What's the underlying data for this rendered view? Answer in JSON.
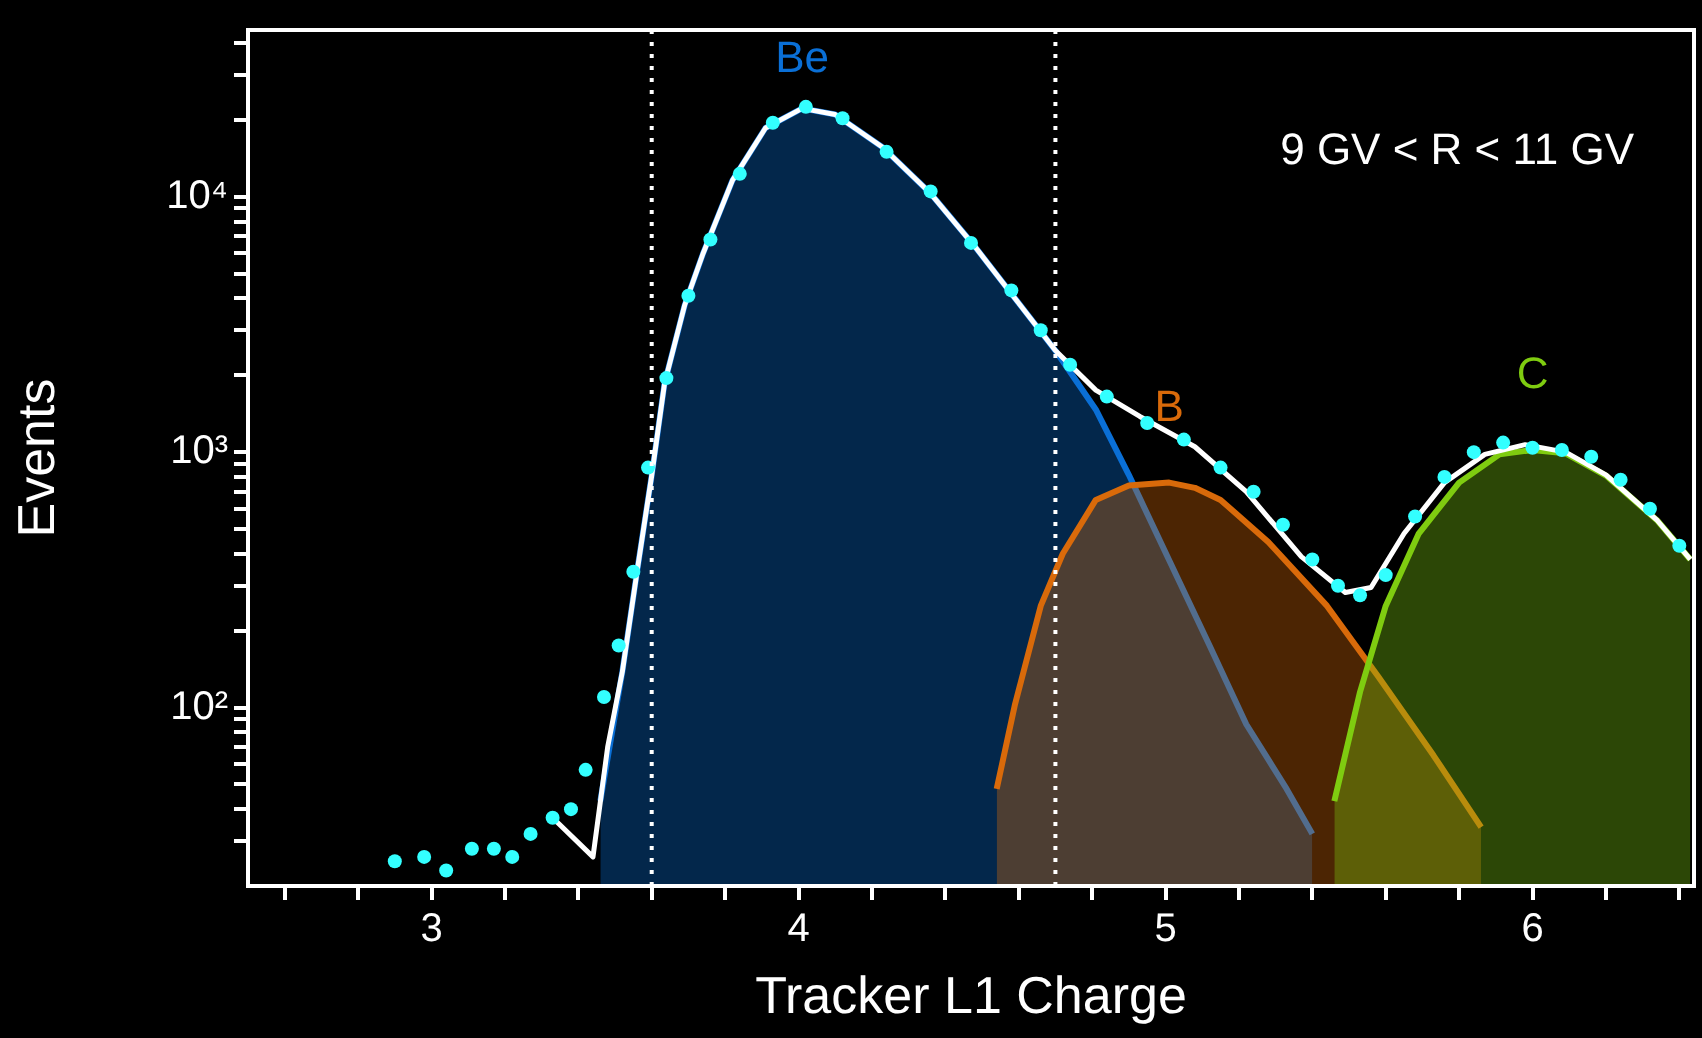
{
  "chart_data": {
    "type": "area",
    "xlabel": "Tracker L1 Charge",
    "ylabel": "Events",
    "annotations": [
      "9 GV < R < 11 GV"
    ],
    "log": "y",
    "grid": false,
    "legend": false,
    "xlim": [
      2.5,
      6.44
    ],
    "ylim": [
      20,
      45000
    ],
    "xticks": [
      {
        "value": 2.6,
        "label": null
      },
      {
        "value": 2.8,
        "label": null
      },
      3,
      {
        "value": 3.2,
        "label": null
      },
      {
        "value": 3.4,
        "label": null
      },
      {
        "value": 3.6,
        "label": null
      },
      {
        "value": 3.8,
        "label": null
      },
      4,
      {
        "value": 4.2,
        "label": null
      },
      {
        "value": 4.4,
        "label": null
      },
      {
        "value": 4.6,
        "label": null
      },
      {
        "value": 4.8,
        "label": null
      },
      5,
      {
        "value": 5.2,
        "label": null
      },
      {
        "value": 5.4,
        "label": null
      },
      {
        "value": 5.6,
        "label": null
      },
      {
        "value": 5.8,
        "label": null
      },
      6,
      {
        "value": 6.2,
        "label": null
      },
      {
        "value": 6.4,
        "label": null
      }
    ],
    "yticks": [
      {
        "value": 30,
        "label": null
      },
      {
        "value": 40,
        "label": null
      },
      {
        "value": 50,
        "label": null
      },
      {
        "value": 60,
        "label": null
      },
      {
        "value": 70,
        "label": null
      },
      {
        "value": 80,
        "label": null
      },
      {
        "value": 90,
        "label": null
      },
      {
        "value": 100,
        "label": "10²"
      },
      {
        "value": 200,
        "label": null
      },
      {
        "value": 300,
        "label": null
      },
      {
        "value": 400,
        "label": null
      },
      {
        "value": 500,
        "label": null
      },
      {
        "value": 600,
        "label": null
      },
      {
        "value": 700,
        "label": null
      },
      {
        "value": 800,
        "label": null
      },
      {
        "value": 900,
        "label": null
      },
      {
        "value": 1000,
        "label": "10³"
      },
      {
        "value": 2000,
        "label": null
      },
      {
        "value": 3000,
        "label": null
      },
      {
        "value": 4000,
        "label": null
      },
      {
        "value": 5000,
        "label": null
      },
      {
        "value": 6000,
        "label": null
      },
      {
        "value": 7000,
        "label": null
      },
      {
        "value": 8000,
        "label": null
      },
      {
        "value": 9000,
        "label": null
      },
      {
        "value": 10000,
        "label": "10⁴"
      },
      {
        "value": 20000,
        "label": null
      },
      {
        "value": 30000,
        "label": null
      },
      {
        "value": 40000,
        "label": null
      }
    ],
    "ref_lines": [
      {
        "axis": "x",
        "value": 3.6,
        "color": "#ffffff",
        "line_style": "dotted"
      },
      {
        "axis": "x",
        "value": 4.7,
        "color": "#ffffff",
        "line_style": "dotted"
      }
    ],
    "series": [
      {
        "name": "Be",
        "color": "#0a6fd6",
        "x": [
          3.46,
          3.52,
          3.56,
          3.6,
          3.635,
          3.69,
          3.74,
          3.82,
          3.91,
          4.01,
          4.1,
          4.23,
          4.36,
          4.48,
          4.59,
          4.7,
          4.81,
          4.9,
          5.01,
          5.12,
          5.22,
          5.33,
          5.4
        ],
        "values": [
          43,
          138,
          340,
          810,
          1860,
          3770,
          6000,
          11600,
          18600,
          22200,
          21000,
          15600,
          10300,
          6400,
          4000,
          2500,
          1470,
          815,
          377,
          175,
          86,
          48,
          32
        ]
      },
      {
        "name": "B",
        "color": "#d96a0a",
        "x": [
          4.54,
          4.59,
          4.66,
          4.72,
          4.81,
          4.9,
          5.01,
          5.08,
          5.15,
          5.28,
          5.44,
          5.58,
          5.73,
          5.86
        ],
        "values": [
          48,
          103,
          250,
          400,
          650,
          740,
          760,
          725,
          650,
          445,
          250,
          132,
          65,
          34
        ]
      },
      {
        "name": "C",
        "color": "#7fcc10",
        "x": [
          5.46,
          5.53,
          5.6,
          5.69,
          5.8,
          5.91,
          6.0,
          6.09,
          6.2,
          6.34,
          6.43
        ],
        "values": [
          43,
          115,
          250,
          480,
          760,
          980,
          1020,
          990,
          810,
          540,
          380
        ]
      },
      {
        "type": "line",
        "color": "#ffffff",
        "x": [
          3.33,
          3.44,
          3.48,
          3.52,
          3.56,
          3.6,
          3.635,
          3.69,
          3.74,
          3.82,
          3.91,
          4.01,
          4.1,
          4.23,
          4.36,
          4.48,
          4.59,
          4.7,
          4.81,
          4.93,
          5.08,
          5.22,
          5.37,
          5.49,
          5.56,
          5.65,
          5.76,
          5.87,
          5.98,
          6.09,
          6.2,
          6.34,
          6.43
        ],
        "values": [
          37,
          26,
          70,
          138,
          340,
          810,
          1860,
          3770,
          6000,
          11600,
          18600,
          22200,
          21000,
          15600,
          10300,
          6400,
          4000,
          2500,
          1750,
          1380,
          1050,
          700,
          390,
          282,
          295,
          480,
          760,
          980,
          1070,
          1000,
          815,
          540,
          380
        ]
      },
      {
        "type": "scatter",
        "color": "#33ffff",
        "marker": "circle",
        "x": [
          2.9,
          2.98,
          3.04,
          3.11,
          3.17,
          3.22,
          3.27,
          3.33,
          3.38,
          3.42,
          3.47,
          3.51,
          3.55,
          3.59,
          3.64,
          3.7,
          3.76,
          3.84,
          3.93,
          4.02,
          4.12,
          4.24,
          4.36,
          4.47,
          4.58,
          4.66,
          4.74,
          4.84,
          4.95,
          5.05,
          5.15,
          5.24,
          5.32,
          5.4,
          5.47,
          5.53,
          5.6,
          5.68,
          5.76,
          5.84,
          5.92,
          6.0,
          6.08,
          6.16,
          6.24,
          6.32,
          6.4
        ],
        "values": [
          25,
          26,
          23,
          28,
          28,
          26,
          32,
          37,
          40,
          57,
          110,
          175,
          340,
          870,
          1950,
          4100,
          6800,
          12300,
          19500,
          22500,
          20300,
          15000,
          10500,
          6600,
          4300,
          3000,
          2200,
          1650,
          1300,
          1120,
          870,
          700,
          520,
          380,
          300,
          275,
          330,
          560,
          800,
          1000,
          1090,
          1040,
          1020,
          960,
          780,
          600,
          430
        ]
      }
    ]
  }
}
